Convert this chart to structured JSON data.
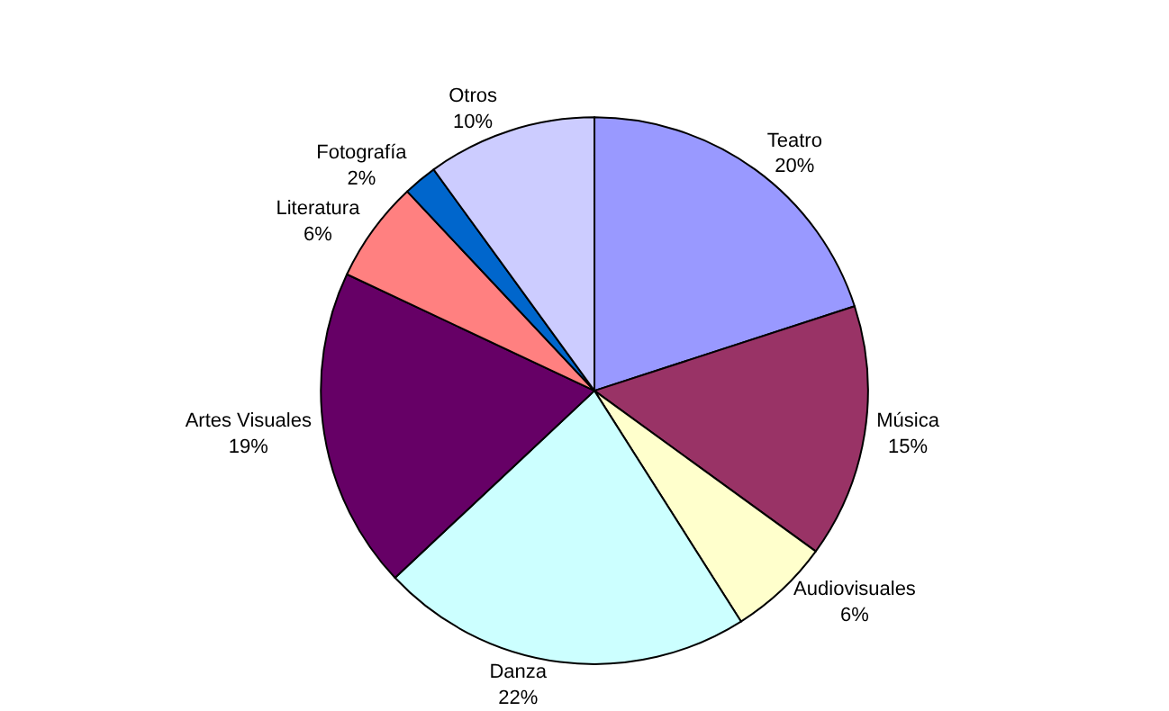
{
  "chart_data": {
    "type": "pie",
    "categories": [
      "Teatro",
      "Música",
      "Audiovisuales",
      "Danza",
      "Artes Visuales",
      "Literatura",
      "Fotografía",
      "Otros"
    ],
    "values": [
      20,
      15,
      6,
      22,
      19,
      6,
      2,
      10
    ],
    "value_labels": [
      "20%",
      "15%",
      "6%",
      "22%",
      "19%",
      "6%",
      "2%",
      "10%"
    ],
    "colors": [
      "#9999ff",
      "#993366",
      "#ffffcc",
      "#ccffff",
      "#660066",
      "#ff8080",
      "#0066cc",
      "#ccccff"
    ],
    "legend": false
  }
}
